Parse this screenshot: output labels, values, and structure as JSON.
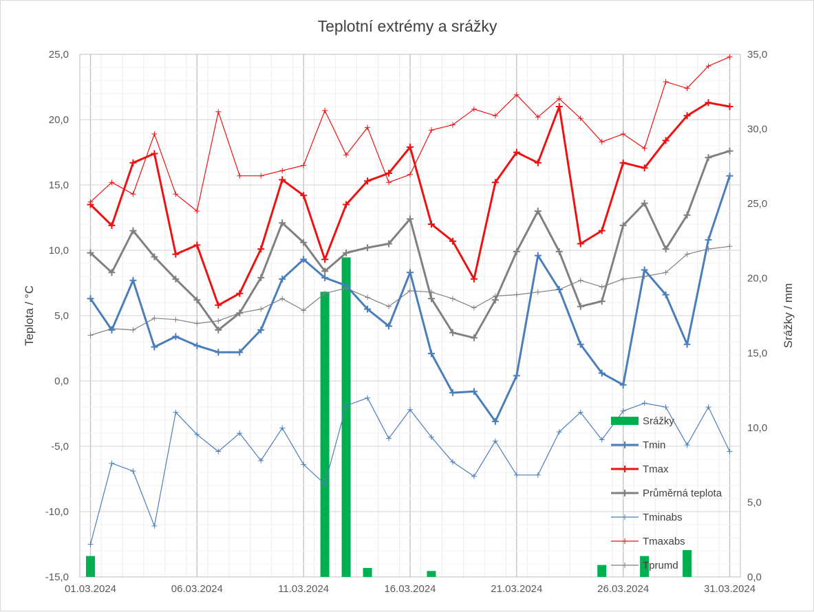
{
  "chart_data": {
    "type": "line",
    "title": "Teplotní extrémy a srážky",
    "ylabel": "Teplota / °C",
    "y2label": "Srážky / mm",
    "ylim": [
      -15,
      25
    ],
    "y2lim": [
      0,
      35
    ],
    "yticks": [
      "25,0",
      "20,0",
      "15,0",
      "10,0",
      "5,0",
      "0,0",
      "-5,0",
      "-10,0",
      "-15,0"
    ],
    "y2ticks": [
      "35,0",
      "30,0",
      "25,0",
      "20,0",
      "15,0",
      "10,0",
      "5,0",
      "0,0"
    ],
    "xtick_labels": [
      {
        "day": 1,
        "label": "01.03.2024"
      },
      {
        "day": 6,
        "label": "06.03.2024"
      },
      {
        "day": 11,
        "label": "11.03.2024"
      },
      {
        "day": 16,
        "label": "16.03.2024"
      },
      {
        "day": 21,
        "label": "21.03.2024"
      },
      {
        "day": 26,
        "label": "26.03.2024"
      },
      {
        "day": 31,
        "label": "31.03.2024"
      }
    ],
    "x": [
      "01.03.2024",
      "02.03.2024",
      "03.03.2024",
      "04.03.2024",
      "05.03.2024",
      "06.03.2024",
      "07.03.2024",
      "08.03.2024",
      "09.03.2024",
      "10.03.2024",
      "11.03.2024",
      "12.03.2024",
      "13.03.2024",
      "14.03.2024",
      "15.03.2024",
      "16.03.2024",
      "17.03.2024",
      "18.03.2024",
      "19.03.2024",
      "20.03.2024",
      "21.03.2024",
      "22.03.2024",
      "23.03.2024",
      "24.03.2024",
      "25.03.2024",
      "26.03.2024",
      "27.03.2024",
      "28.03.2024",
      "29.03.2024",
      "30.03.2024",
      "31.03.2024"
    ],
    "grid": true,
    "legend_position": "bottom-right",
    "precip": {
      "name": "Srážky",
      "color": "#00b050",
      "values": [
        1.4,
        0,
        0,
        0,
        0,
        0,
        0,
        0,
        0,
        0,
        0,
        19.1,
        21.4,
        0.6,
        0,
        0,
        0.4,
        0,
        0,
        0,
        0,
        0,
        0,
        0,
        0.8,
        0,
        1.4,
        0,
        1.8,
        0,
        0
      ]
    },
    "series": [
      {
        "name": "Tmin",
        "color": "#4a7ebb",
        "width": 3,
        "marker": 10,
        "values": [
          6.3,
          3.9,
          7.7,
          2.6,
          3.4,
          2.7,
          2.2,
          2.2,
          3.9,
          7.8,
          9.3,
          7.9,
          7.3,
          5.5,
          4.2,
          8.3,
          2.1,
          -0.9,
          -0.8,
          -3.1,
          0.4,
          9.6,
          7.0,
          2.8,
          0.6,
          -0.3,
          8.5,
          6.6,
          2.8,
          10.8,
          15.7
        ]
      },
      {
        "name": "Tmax",
        "color": "#ee1111",
        "width": 3,
        "marker": 10,
        "values": [
          13.5,
          11.9,
          16.7,
          17.4,
          9.7,
          10.4,
          5.8,
          6.7,
          10.1,
          15.4,
          14.2,
          9.3,
          13.5,
          15.3,
          15.9,
          17.9,
          12.0,
          10.7,
          7.8,
          15.2,
          17.5,
          16.7,
          21.0,
          10.5,
          11.5,
          16.7,
          16.3,
          18.4,
          20.3,
          21.3,
          21.0
        ]
      },
      {
        "name": "Průměrná teplota",
        "color": "#808080",
        "width": 3,
        "marker": 10,
        "values": [
          9.8,
          8.3,
          11.5,
          9.5,
          7.8,
          6.2,
          3.9,
          5.2,
          7.9,
          12.1,
          10.6,
          8.4,
          9.8,
          10.2,
          10.5,
          12.4,
          6.3,
          3.7,
          3.3,
          6.2,
          9.9,
          13.0,
          9.9,
          5.7,
          6.1,
          11.9,
          13.6,
          10.1,
          12.7,
          17.1,
          17.6
        ]
      },
      {
        "name": "Tminabs",
        "color": "#4a7ebb",
        "width": 1.2,
        "marker": 8,
        "values": [
          -12.5,
          -6.3,
          -6.9,
          -11.1,
          -2.4,
          -4.1,
          -5.4,
          -4.0,
          -6.1,
          -3.6,
          -6.4,
          -7.9,
          -1.9,
          -1.3,
          -4.4,
          -2.2,
          -4.3,
          -6.2,
          -7.3,
          -4.6,
          -7.2,
          -7.2,
          -3.9,
          -2.4,
          -4.5,
          -2.3,
          -1.7,
          -2.0,
          -4.9,
          -2.0,
          -5.4
        ]
      },
      {
        "name": "Tmaxabs",
        "color": "#ee1111",
        "width": 1.2,
        "marker": 8,
        "values": [
          13.7,
          15.2,
          14.3,
          18.9,
          14.3,
          13.0,
          20.6,
          15.7,
          15.7,
          16.1,
          16.5,
          20.7,
          17.3,
          19.4,
          15.2,
          15.8,
          19.2,
          19.6,
          20.8,
          20.3,
          21.9,
          20.2,
          21.6,
          20.1,
          18.3,
          18.9,
          17.8,
          22.9,
          22.4,
          24.1,
          24.8
        ]
      },
      {
        "name": "Tprumd",
        "color": "#808080",
        "width": 1.2,
        "marker": 8,
        "values": [
          3.5,
          4.0,
          3.9,
          4.8,
          4.7,
          4.4,
          4.6,
          5.2,
          5.5,
          6.3,
          5.4,
          6.7,
          7.1,
          6.4,
          5.7,
          6.9,
          6.8,
          6.3,
          5.6,
          6.5,
          6.6,
          6.8,
          7.0,
          7.7,
          7.2,
          7.8,
          8.0,
          8.3,
          9.7,
          10.1,
          10.3
        ]
      }
    ]
  }
}
